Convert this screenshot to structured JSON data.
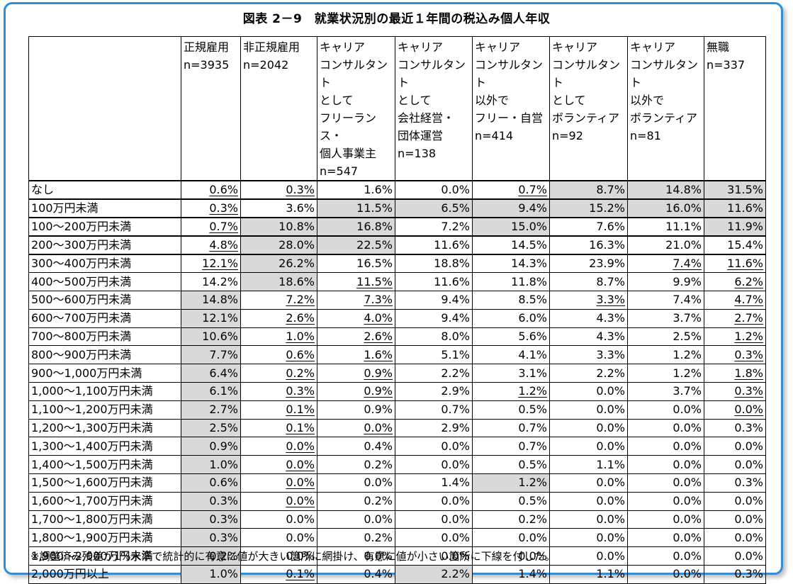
{
  "title": "図表 2－9　就業状況別の最近１年間の税込み個人年収",
  "chart_data": {
    "type": "table",
    "columns": [
      {
        "lines": [
          "正規雇用",
          "n=3935"
        ]
      },
      {
        "lines": [
          "非正規雇用",
          "n=2042"
        ]
      },
      {
        "lines": [
          "キャリア",
          "コンサルタント",
          "として",
          "フリーランス・",
          "個人事業主",
          "n=547"
        ]
      },
      {
        "lines": [
          "キャリア",
          "コンサルタント",
          "として",
          "会社経営・",
          "団体運営",
          "n=138"
        ]
      },
      {
        "lines": [
          "キャリア",
          "コンサルタント",
          "以外で",
          "フリー・自営",
          "n=414"
        ]
      },
      {
        "lines": [
          "キャリア",
          "コンサルタント",
          "として",
          "ボランティア",
          "n=92"
        ]
      },
      {
        "lines": [
          "キャリア",
          "コンサルタント",
          "以外で",
          "ボランティア",
          "n=81"
        ]
      },
      {
        "lines": [
          "無職",
          "n=337"
        ]
      }
    ],
    "rows": [
      {
        "label": "なし",
        "values": [
          "0.6%",
          "0.3%",
          "1.6%",
          "0.0%",
          "0.7%",
          "8.7%",
          "14.8%",
          "31.5%"
        ],
        "shaded": [
          0,
          0,
          0,
          0,
          0,
          1,
          1,
          1
        ],
        "underlined": [
          1,
          1,
          0,
          0,
          1,
          0,
          0,
          0
        ]
      },
      {
        "label": "100万円未満",
        "values": [
          "0.3%",
          "3.6%",
          "11.5%",
          "6.5%",
          "9.4%",
          "15.2%",
          "16.0%",
          "11.6%"
        ],
        "shaded": [
          0,
          0,
          1,
          1,
          1,
          1,
          1,
          1
        ],
        "underlined": [
          1,
          0,
          0,
          0,
          0,
          0,
          0,
          0
        ]
      },
      {
        "label": "100～200万円未満",
        "values": [
          "0.7%",
          "10.8%",
          "16.8%",
          "7.2%",
          "15.0%",
          "7.6%",
          "11.1%",
          "11.9%"
        ],
        "shaded": [
          0,
          1,
          1,
          0,
          1,
          0,
          0,
          1
        ],
        "underlined": [
          1,
          0,
          0,
          0,
          0,
          0,
          0,
          0
        ]
      },
      {
        "label": "200～300万円未満",
        "values": [
          "4.8%",
          "28.0%",
          "22.5%",
          "11.6%",
          "14.5%",
          "16.3%",
          "21.0%",
          "15.4%"
        ],
        "shaded": [
          0,
          1,
          1,
          0,
          0,
          0,
          0,
          0
        ],
        "underlined": [
          1,
          0,
          0,
          0,
          0,
          0,
          0,
          0
        ]
      },
      {
        "label": "300～400万円未満",
        "values": [
          "12.1%",
          "26.2%",
          "16.5%",
          "18.8%",
          "14.3%",
          "23.9%",
          "7.4%",
          "11.6%"
        ],
        "shaded": [
          0,
          1,
          0,
          0,
          0,
          0,
          0,
          0
        ],
        "underlined": [
          1,
          0,
          0,
          0,
          0,
          0,
          1,
          1
        ]
      },
      {
        "label": "400～500万円未満",
        "values": [
          "14.2%",
          "18.6%",
          "11.5%",
          "11.6%",
          "11.8%",
          "8.7%",
          "9.9%",
          "6.2%"
        ],
        "shaded": [
          0,
          1,
          0,
          0,
          0,
          0,
          0,
          0
        ],
        "underlined": [
          0,
          0,
          1,
          0,
          0,
          0,
          0,
          1
        ]
      },
      {
        "label": "500～600万円未満",
        "values": [
          "14.8%",
          "7.2%",
          "7.3%",
          "9.4%",
          "8.5%",
          "3.3%",
          "7.4%",
          "4.7%"
        ],
        "shaded": [
          1,
          0,
          0,
          0,
          0,
          0,
          0,
          0
        ],
        "underlined": [
          0,
          1,
          1,
          0,
          0,
          1,
          0,
          1
        ]
      },
      {
        "label": "600～700万円未満",
        "values": [
          "12.1%",
          "2.6%",
          "4.0%",
          "9.4%",
          "6.0%",
          "4.3%",
          "3.7%",
          "2.7%"
        ],
        "shaded": [
          1,
          0,
          0,
          0,
          0,
          0,
          0,
          0
        ],
        "underlined": [
          0,
          1,
          1,
          0,
          0,
          0,
          0,
          1
        ]
      },
      {
        "label": "700～800万円未満",
        "values": [
          "10.6%",
          "1.0%",
          "2.6%",
          "8.0%",
          "5.6%",
          "4.3%",
          "2.5%",
          "1.2%"
        ],
        "shaded": [
          1,
          0,
          0,
          0,
          0,
          0,
          0,
          0
        ],
        "underlined": [
          0,
          1,
          1,
          0,
          0,
          0,
          0,
          1
        ]
      },
      {
        "label": "800～900万円未満",
        "values": [
          "7.7%",
          "0.6%",
          "1.6%",
          "5.1%",
          "4.1%",
          "3.3%",
          "1.2%",
          "0.3%"
        ],
        "shaded": [
          1,
          0,
          0,
          0,
          0,
          0,
          0,
          0
        ],
        "underlined": [
          0,
          1,
          1,
          0,
          0,
          0,
          0,
          1
        ]
      },
      {
        "label": "900～1,000万円未満",
        "values": [
          "6.4%",
          "0.2%",
          "0.9%",
          "2.2%",
          "3.1%",
          "2.2%",
          "1.2%",
          "1.8%"
        ],
        "shaded": [
          1,
          0,
          0,
          0,
          0,
          0,
          0,
          0
        ],
        "underlined": [
          0,
          1,
          1,
          0,
          0,
          0,
          0,
          1
        ]
      },
      {
        "label": "1,000～1,100万円未満",
        "values": [
          "6.1%",
          "0.3%",
          "0.9%",
          "2.9%",
          "1.2%",
          "0.0%",
          "3.7%",
          "0.3%"
        ],
        "shaded": [
          1,
          0,
          0,
          0,
          0,
          0,
          0,
          0
        ],
        "underlined": [
          0,
          1,
          1,
          0,
          1,
          0,
          0,
          1
        ]
      },
      {
        "label": "1,100～1,200万円未満",
        "values": [
          "2.7%",
          "0.1%",
          "0.9%",
          "0.7%",
          "0.5%",
          "0.0%",
          "0.0%",
          "0.0%"
        ],
        "shaded": [
          1,
          0,
          0,
          0,
          0,
          0,
          0,
          0
        ],
        "underlined": [
          0,
          1,
          0,
          0,
          0,
          0,
          0,
          1
        ]
      },
      {
        "label": "1,200～1,300万円未満",
        "values": [
          "2.5%",
          "0.1%",
          "0.0%",
          "2.9%",
          "0.7%",
          "0.0%",
          "0.0%",
          "0.3%"
        ],
        "shaded": [
          1,
          0,
          0,
          0,
          0,
          0,
          0,
          0
        ],
        "underlined": [
          0,
          1,
          1,
          0,
          0,
          0,
          0,
          0
        ]
      },
      {
        "label": "1,300～1,400万円未満",
        "values": [
          "0.9%",
          "0.0%",
          "0.4%",
          "0.0%",
          "0.7%",
          "0.0%",
          "0.0%",
          "0.0%"
        ],
        "shaded": [
          1,
          0,
          0,
          0,
          0,
          0,
          0,
          0
        ],
        "underlined": [
          0,
          1,
          0,
          0,
          0,
          0,
          0,
          0
        ]
      },
      {
        "label": "1,400～1,500万円未満",
        "values": [
          "1.0%",
          "0.0%",
          "0.2%",
          "0.0%",
          "0.5%",
          "1.1%",
          "0.0%",
          "0.0%"
        ],
        "shaded": [
          1,
          0,
          0,
          0,
          0,
          0,
          0,
          0
        ],
        "underlined": [
          0,
          1,
          0,
          0,
          0,
          0,
          0,
          0
        ]
      },
      {
        "label": "1,500～1,600万円未満",
        "values": [
          "0.6%",
          "0.0%",
          "0.0%",
          "1.4%",
          "1.2%",
          "0.0%",
          "0.0%",
          "0.3%"
        ],
        "shaded": [
          1,
          0,
          0,
          0,
          1,
          0,
          0,
          0
        ],
        "underlined": [
          0,
          1,
          0,
          0,
          0,
          0,
          0,
          0
        ]
      },
      {
        "label": "1,600～1,700万円未満",
        "values": [
          "0.3%",
          "0.0%",
          "0.2%",
          "0.0%",
          "0.5%",
          "0.0%",
          "0.0%",
          "0.0%"
        ],
        "shaded": [
          1,
          0,
          0,
          0,
          0,
          0,
          0,
          0
        ],
        "underlined": [
          0,
          1,
          0,
          0,
          0,
          0,
          0,
          0
        ]
      },
      {
        "label": "1,700～1,800万円未満",
        "values": [
          "0.3%",
          "0.0%",
          "0.0%",
          "0.0%",
          "0.2%",
          "0.0%",
          "0.0%",
          "0.0%"
        ],
        "shaded": [
          1,
          0,
          0,
          0,
          0,
          0,
          0,
          0
        ],
        "underlined": [
          0,
          0,
          0,
          0,
          0,
          0,
          0,
          0
        ]
      },
      {
        "label": "1,800～1,900万円未満",
        "values": [
          "0.3%",
          "0.0%",
          "0.2%",
          "0.0%",
          "0.0%",
          "0.0%",
          "0.0%",
          "0.0%"
        ],
        "shaded": [
          1,
          0,
          0,
          0,
          0,
          0,
          0,
          0
        ],
        "underlined": [
          0,
          0,
          0,
          0,
          0,
          0,
          0,
          0
        ]
      },
      {
        "label": "1,900～2,000万円未満",
        "values": [
          "0.2%",
          "0.0%",
          "0.0%",
          "0.0%",
          "0.0%",
          "0.0%",
          "0.0%",
          "0.0%"
        ],
        "shaded": [
          1,
          0,
          0,
          0,
          0,
          0,
          0,
          0
        ],
        "underlined": [
          0,
          0,
          0,
          0,
          0,
          0,
          0,
          0
        ]
      },
      {
        "label": "2,000万円以上",
        "values": [
          "1.0%",
          "0.1%",
          "0.4%",
          "2.2%",
          "1.4%",
          "1.1%",
          "0.0%",
          "0.3%"
        ],
        "shaded": [
          1,
          0,
          0,
          1,
          0,
          0,
          0,
          0
        ],
        "underlined": [
          0,
          1,
          0,
          0,
          0,
          0,
          0,
          0
        ]
      }
    ],
    "shade_color": "#d9d9d9"
  },
  "note": "※調整済み残差が1%水準で統計的に有意に値が大きい箇所に網掛け、有意に値が小さい箇所に下線を付した。",
  "colors": {
    "frame": "#2f8fd6"
  }
}
